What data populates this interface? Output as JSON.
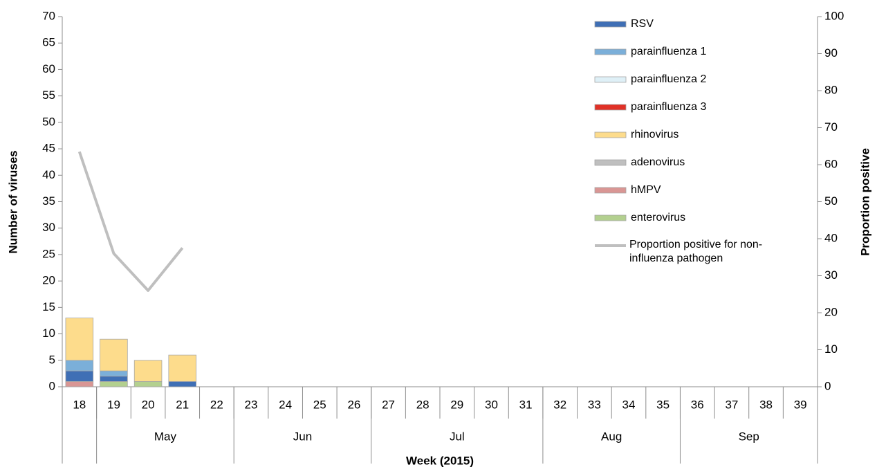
{
  "chart_data": {
    "type": "stacked-bar-line",
    "x_label": "Week (2015)",
    "y_label": "Number of viruses",
    "y2_label": "Proportion positive",
    "categories": [
      "18",
      "19",
      "20",
      "21",
      "22",
      "23",
      "24",
      "25",
      "26",
      "27",
      "28",
      "29",
      "30",
      "31",
      "32",
      "33",
      "34",
      "35",
      "36",
      "37",
      "38",
      "39"
    ],
    "category_groups": [
      null,
      "May",
      "May",
      "May",
      "May",
      "Jun",
      "Jun",
      "Jun",
      "Jun",
      "Jul",
      "Jul",
      "Jul",
      "Jul",
      "Jul",
      "Aug",
      "Aug",
      "Aug",
      "Aug",
      "Sep",
      "Sep",
      "Sep",
      "Sep"
    ],
    "series": [
      {
        "name": "RSV",
        "color": "#3f6fb5",
        "values": [
          2,
          1,
          0,
          1,
          null,
          null,
          null,
          null,
          null,
          null,
          null,
          null,
          null,
          null,
          null,
          null,
          null,
          null,
          null,
          null,
          null,
          null
        ]
      },
      {
        "name": "parainfluenza 1",
        "color": "#7bafd9",
        "values": [
          2,
          1,
          0,
          0,
          null,
          null,
          null,
          null,
          null,
          null,
          null,
          null,
          null,
          null,
          null,
          null,
          null,
          null,
          null,
          null,
          null,
          null
        ]
      },
      {
        "name": "parainfluenza 2",
        "color": "#dff0f7",
        "values": [
          0,
          0,
          0,
          0,
          null,
          null,
          null,
          null,
          null,
          null,
          null,
          null,
          null,
          null,
          null,
          null,
          null,
          null,
          null,
          null,
          null,
          null
        ]
      },
      {
        "name": "parainfluenza 3",
        "color": "#e03127",
        "values": [
          0,
          0,
          0,
          0,
          null,
          null,
          null,
          null,
          null,
          null,
          null,
          null,
          null,
          null,
          null,
          null,
          null,
          null,
          null,
          null,
          null,
          null
        ]
      },
      {
        "name": "rhinovirus",
        "color": "#fddc8c",
        "values": [
          8,
          6,
          4,
          5,
          null,
          null,
          null,
          null,
          null,
          null,
          null,
          null,
          null,
          null,
          null,
          null,
          null,
          null,
          null,
          null,
          null,
          null
        ]
      },
      {
        "name": "adenovirus",
        "color": "#bfbfbf",
        "values": [
          0,
          0,
          0,
          0,
          null,
          null,
          null,
          null,
          null,
          null,
          null,
          null,
          null,
          null,
          null,
          null,
          null,
          null,
          null,
          null,
          null,
          null
        ]
      },
      {
        "name": "hMPV",
        "color": "#d99694",
        "values": [
          1,
          0,
          0,
          0,
          null,
          null,
          null,
          null,
          null,
          null,
          null,
          null,
          null,
          null,
          null,
          null,
          null,
          null,
          null,
          null,
          null,
          null
        ]
      },
      {
        "name": "enterovirus",
        "color": "#b3d08f",
        "values": [
          0,
          1,
          1,
          0,
          null,
          null,
          null,
          null,
          null,
          null,
          null,
          null,
          null,
          null,
          null,
          null,
          null,
          null,
          null,
          null,
          null,
          null
        ]
      },
      {
        "name": "Proportion positive for non-influenza pathogen",
        "color": "#bfbfbf",
        "type": "line",
        "axis": "y2",
        "values": [
          63.5,
          36,
          26,
          37.5,
          null,
          null,
          null,
          null,
          null,
          null,
          null,
          null,
          null,
          null,
          null,
          null,
          null,
          null,
          null,
          null,
          null,
          null
        ]
      }
    ],
    "ylim": [
      0,
      70
    ],
    "yticks": [
      0,
      5,
      10,
      15,
      20,
      25,
      30,
      35,
      40,
      45,
      50,
      55,
      60,
      65,
      70
    ],
    "y2lim": [
      0,
      100
    ],
    "y2ticks": [
      0,
      10,
      20,
      30,
      40,
      50,
      60,
      70,
      80,
      90,
      100
    ],
    "legend": "top-right"
  }
}
